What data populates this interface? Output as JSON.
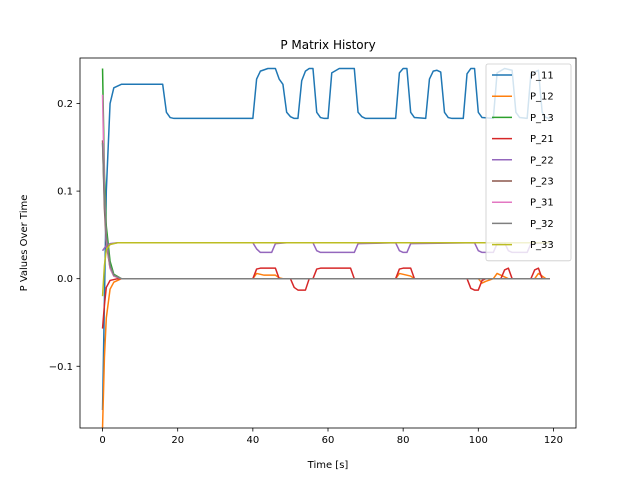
{
  "chart_data": {
    "type": "line",
    "title": "P Matrix History",
    "xlabel": "Time [s]",
    "ylabel": "P Values Over Time",
    "xlim": [
      -6,
      126
    ],
    "ylim": [
      -0.1705,
      0.252
    ],
    "xticks": [
      0,
      20,
      40,
      60,
      80,
      100,
      120
    ],
    "yticks": [
      -0.1,
      0.0,
      0.1,
      0.2
    ],
    "ytick_labels": [
      "−0.1",
      "0.0",
      "0.1",
      "0.2"
    ],
    "legend_position": "upper right",
    "grid": false,
    "series": [
      {
        "name": "P_11",
        "color": "#1f77b4",
        "points": [
          [
            0,
            -0.15
          ],
          [
            1,
            0.1
          ],
          [
            2,
            0.2
          ],
          [
            3,
            0.218
          ],
          [
            5,
            0.222
          ],
          [
            16,
            0.222
          ],
          [
            17,
            0.19
          ],
          [
            18,
            0.184
          ],
          [
            19,
            0.183
          ],
          [
            40,
            0.183
          ],
          [
            41,
            0.228
          ],
          [
            42,
            0.237
          ],
          [
            44,
            0.24
          ],
          [
            46,
            0.24
          ],
          [
            47,
            0.228
          ],
          [
            48,
            0.222
          ],
          [
            49,
            0.19
          ],
          [
            50,
            0.185
          ],
          [
            51,
            0.183
          ],
          [
            52,
            0.183
          ],
          [
            53,
            0.226
          ],
          [
            54,
            0.237
          ],
          [
            55,
            0.24
          ],
          [
            56,
            0.24
          ],
          [
            57,
            0.19
          ],
          [
            58,
            0.184
          ],
          [
            59,
            0.183
          ],
          [
            60,
            0.183
          ],
          [
            61,
            0.235
          ],
          [
            63,
            0.24
          ],
          [
            67,
            0.24
          ],
          [
            68,
            0.19
          ],
          [
            69,
            0.185
          ],
          [
            70,
            0.183
          ],
          [
            78,
            0.183
          ],
          [
            79,
            0.235
          ],
          [
            80,
            0.24
          ],
          [
            81,
            0.24
          ],
          [
            82,
            0.19
          ],
          [
            83,
            0.184
          ],
          [
            86,
            0.183
          ],
          [
            87,
            0.228
          ],
          [
            88,
            0.237
          ],
          [
            89,
            0.238
          ],
          [
            90,
            0.236
          ],
          [
            91,
            0.19
          ],
          [
            92,
            0.184
          ],
          [
            93,
            0.183
          ],
          [
            96,
            0.183
          ],
          [
            97,
            0.234
          ],
          [
            98,
            0.24
          ],
          [
            99,
            0.24
          ],
          [
            100,
            0.19
          ],
          [
            101,
            0.184
          ],
          [
            104,
            0.183
          ],
          [
            105,
            0.235
          ],
          [
            107,
            0.24
          ],
          [
            109,
            0.238
          ],
          [
            110,
            0.19
          ],
          [
            111,
            0.184
          ],
          [
            113,
            0.183
          ],
          [
            114,
            0.234
          ],
          [
            116,
            0.238
          ],
          [
            117,
            0.19
          ],
          [
            118,
            0.184
          ],
          [
            119,
            0.183
          ]
        ]
      },
      {
        "name": "P_12",
        "color": "#ff7f0e",
        "points": [
          [
            0,
            -0.17
          ],
          [
            0.5,
            -0.09
          ],
          [
            1,
            -0.045
          ],
          [
            2,
            -0.012
          ],
          [
            3,
            -0.004
          ],
          [
            5,
            0
          ],
          [
            40,
            0
          ],
          [
            41,
            0.006
          ],
          [
            43,
            0.004
          ],
          [
            46,
            0.004
          ],
          [
            47,
            0.001
          ],
          [
            48,
            0
          ],
          [
            78,
            0
          ],
          [
            79,
            0.006
          ],
          [
            80,
            0.005
          ],
          [
            82,
            0.003
          ],
          [
            83,
            0
          ],
          [
            100,
            0
          ],
          [
            101,
            -0.005
          ],
          [
            102,
            -0.003
          ],
          [
            104,
            0
          ],
          [
            105,
            0.006
          ],
          [
            106,
            0.004
          ],
          [
            108,
            0
          ],
          [
            115,
            0
          ],
          [
            116,
            0.006
          ],
          [
            117,
            0.003
          ],
          [
            118,
            0
          ],
          [
            119,
            0
          ]
        ]
      },
      {
        "name": "P_13",
        "color": "#2ca02c",
        "points": [
          [
            0,
            0.24
          ],
          [
            0.5,
            0.12
          ],
          [
            1,
            0.06
          ],
          [
            2,
            0.02
          ],
          [
            3,
            0.005
          ],
          [
            5,
            0
          ],
          [
            119,
            0
          ]
        ]
      },
      {
        "name": "P_21",
        "color": "#d62728",
        "points": [
          [
            0,
            -0.057
          ],
          [
            0.5,
            -0.03
          ],
          [
            1,
            -0.01
          ],
          [
            2,
            -0.002
          ],
          [
            4,
            0
          ],
          [
            40,
            0
          ],
          [
            41,
            0.011
          ],
          [
            42,
            0.012
          ],
          [
            46,
            0.012
          ],
          [
            47,
            0
          ],
          [
            50,
            0
          ],
          [
            51,
            -0.01
          ],
          [
            52,
            -0.013
          ],
          [
            54,
            -0.013
          ],
          [
            55,
            0
          ],
          [
            56,
            0
          ],
          [
            57,
            0.011
          ],
          [
            58,
            0.012
          ],
          [
            66,
            0.012
          ],
          [
            67,
            0
          ],
          [
            78,
            0
          ],
          [
            79,
            0.011
          ],
          [
            80,
            0.012
          ],
          [
            82,
            0.012
          ],
          [
            83,
            0
          ],
          [
            97,
            0
          ],
          [
            98,
            -0.011
          ],
          [
            99,
            -0.013
          ],
          [
            100,
            -0.013
          ],
          [
            101,
            -0.002
          ],
          [
            102,
            0
          ],
          [
            106,
            0
          ],
          [
            107,
            0.01
          ],
          [
            108,
            0.012
          ],
          [
            109,
            0
          ],
          [
            114,
            0
          ],
          [
            115,
            0.01
          ],
          [
            116,
            0.012
          ],
          [
            117,
            0
          ],
          [
            119,
            0
          ]
        ]
      },
      {
        "name": "P_22",
        "color": "#9467bd",
        "points": [
          [
            0,
            0.032
          ],
          [
            1,
            0.038
          ],
          [
            2,
            0.04
          ],
          [
            4,
            0.041
          ],
          [
            40,
            0.041
          ],
          [
            41,
            0.034
          ],
          [
            42,
            0.03
          ],
          [
            45,
            0.03
          ],
          [
            46,
            0.04
          ],
          [
            49,
            0.041
          ],
          [
            56,
            0.041
          ],
          [
            57,
            0.032
          ],
          [
            58,
            0.03
          ],
          [
            67,
            0.03
          ],
          [
            68,
            0.04
          ],
          [
            78,
            0.041
          ],
          [
            79,
            0.032
          ],
          [
            80,
            0.03
          ],
          [
            81,
            0.03
          ],
          [
            82,
            0.04
          ],
          [
            99,
            0.041
          ],
          [
            100,
            0.032
          ],
          [
            101,
            0.03
          ],
          [
            104,
            0.03
          ],
          [
            105,
            0.04
          ],
          [
            107,
            0.041
          ],
          [
            108,
            0.032
          ],
          [
            109,
            0.03
          ],
          [
            113,
            0.03
          ],
          [
            114,
            0.04
          ],
          [
            119,
            0.041
          ]
        ]
      },
      {
        "name": "P_23",
        "color": "#8c564b",
        "points": [
          [
            0,
            0.158
          ],
          [
            0.5,
            0.08
          ],
          [
            1,
            0.04
          ],
          [
            2,
            0.012
          ],
          [
            3,
            0.003
          ],
          [
            5,
            0
          ],
          [
            119,
            0
          ]
        ]
      },
      {
        "name": "P_31",
        "color": "#e377c2",
        "points": [
          [
            0,
            0.21
          ],
          [
            0.5,
            0.1
          ],
          [
            1,
            0.045
          ],
          [
            2,
            0.012
          ],
          [
            3,
            0.003
          ],
          [
            5,
            0
          ],
          [
            119,
            0
          ]
        ]
      },
      {
        "name": "P_32",
        "color": "#7f7f7f",
        "points": [
          [
            0,
            0.155
          ],
          [
            0.5,
            0.09
          ],
          [
            1,
            0.05
          ],
          [
            2,
            0.015
          ],
          [
            3,
            0.004
          ],
          [
            5,
            0
          ],
          [
            119,
            0
          ]
        ]
      },
      {
        "name": "P_33",
        "color": "#bcbd22",
        "points": [
          [
            0,
            -0.02
          ],
          [
            0.5,
            0.015
          ],
          [
            1,
            0.033
          ],
          [
            2,
            0.039
          ],
          [
            4,
            0.041
          ],
          [
            119,
            0.041
          ]
        ]
      }
    ]
  }
}
